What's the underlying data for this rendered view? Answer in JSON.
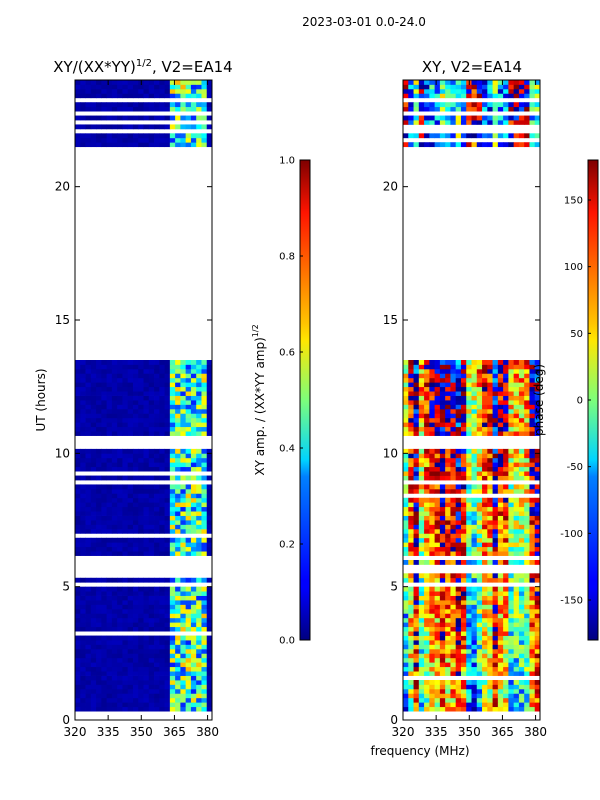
{
  "figure_title": "2023-03-01 0.0-24.0",
  "xlabel_shared": "frequency (MHz)",
  "chart_data": [
    {
      "type": "heatmap",
      "title_main": "XY/(XX*YY)",
      "title_sup": "1/2",
      "title_tail": ", V2=EA14",
      "xlabel": "",
      "ylabel": "UT (hours)",
      "xlim": [
        320,
        382
      ],
      "ylim": [
        0,
        24
      ],
      "xticks": [
        320,
        335,
        350,
        365,
        380
      ],
      "yticks": [
        0,
        5,
        10,
        15,
        20
      ],
      "colorbar": {
        "label_main": "XY amp. / (XX*YY amp)",
        "label_sup": "1/2",
        "range": [
          0,
          1
        ],
        "ticks": [
          "0.0",
          "0.2",
          "0.4",
          "0.6",
          "0.8",
          "1.0"
        ],
        "colormap": "jet"
      },
      "data_blocks_hours": [
        [
          0.3,
          13.5
        ],
        [
          21.5,
          24.0
        ]
      ],
      "flagged_gaps_hours": [
        [
          0.0,
          0.3
        ],
        [
          5.0,
          5.2
        ],
        [
          5.5,
          5.8
        ],
        [
          6.0,
          6.2
        ],
        [
          10.2,
          10.6
        ],
        [
          13.5,
          21.5
        ],
        [
          22.0,
          22.2
        ],
        [
          22.7,
          22.9
        ],
        [
          23.2,
          23.4
        ]
      ],
      "signal_band_mhz": [
        362,
        380
      ],
      "background_value": 0.02
    },
    {
      "type": "heatmap",
      "title_main": "XY, V2=EA14",
      "xlabel": "frequency (MHz)",
      "ylabel": "",
      "xlim": [
        320,
        382
      ],
      "ylim": [
        0,
        24
      ],
      "xticks": [
        320,
        335,
        350,
        365,
        380
      ],
      "yticks": [
        0,
        5,
        10,
        15,
        20
      ],
      "colorbar": {
        "label_main": "phase (deg)",
        "range": [
          -180,
          180
        ],
        "ticks": [
          "-150",
          "-100",
          "-50",
          "0",
          "50",
          "100",
          "150"
        ],
        "tick_values": [
          -150,
          -100,
          -50,
          0,
          50,
          100,
          150
        ],
        "colormap": "jet"
      },
      "data_blocks_hours": [
        [
          0.3,
          13.5
        ],
        [
          21.5,
          24.0
        ]
      ],
      "flagged_gaps_hours": [
        [
          0.0,
          0.3
        ],
        [
          5.0,
          5.2
        ],
        [
          5.5,
          5.8
        ],
        [
          6.0,
          6.2
        ],
        [
          10.2,
          10.6
        ],
        [
          13.5,
          21.5
        ],
        [
          22.0,
          22.2
        ],
        [
          22.7,
          22.9
        ],
        [
          23.2,
          23.4
        ]
      ]
    }
  ]
}
